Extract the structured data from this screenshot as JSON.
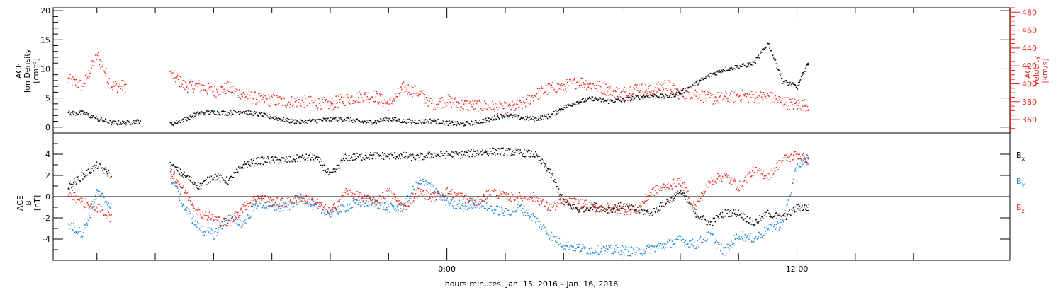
{
  "chart_data": [
    {
      "type": "scatter",
      "panel": "top",
      "left_ylabel_lines": [
        "ACE",
        "Ion Density",
        "[cm⁻³]"
      ],
      "right_ylabel_lines": [
        "ACE",
        "Velocity",
        "[km/s]"
      ],
      "ylim": [
        -1,
        20.5
      ],
      "y2lim": [
        345,
        485
      ],
      "y_ticks": [
        "0",
        "5",
        "10",
        "15",
        "20"
      ],
      "y2_ticks": [
        "360",
        "380",
        "400",
        "420",
        "440",
        "460",
        "480"
      ],
      "y_tick_values": [
        0,
        5,
        10,
        15,
        20
      ],
      "y2_tick_values": [
        360,
        380,
        400,
        420,
        440,
        460,
        480
      ],
      "colors": {
        "density": "#000000",
        "velocity": "#e8281c"
      },
      "series": [
        {
          "name": "Ion Density",
          "axis": "left",
          "color": "#000000",
          "x": [
            -13.0,
            -12.5,
            -12.0,
            -11.5,
            -11.0,
            -10.5,
            -10.0,
            -9.5,
            -9.0,
            -8.5,
            -8.0,
            -7.5,
            -7.0,
            -6.5,
            -6.0,
            -5.5,
            -5.0,
            -4.5,
            -4.0,
            -3.5,
            -3.0,
            -2.5,
            -2.0,
            -1.5,
            -1.0,
            -0.5,
            0.0,
            0.5,
            1.0,
            1.5,
            2.0,
            2.5,
            3.0,
            3.5,
            4.0,
            4.5,
            5.0,
            5.5,
            6.0,
            6.5,
            7.0,
            7.5,
            8.0,
            8.5,
            9.0,
            9.5,
            10.0,
            10.5,
            11.0,
            11.5,
            12.0,
            12.4
          ],
          "y": [
            2.5,
            2.5,
            1.5,
            0.8,
            0.8,
            1.2,
            null,
            0.5,
            1.5,
            2.5,
            2.6,
            2.5,
            2.8,
            2.3,
            1.8,
            1.2,
            1.0,
            1.2,
            1.4,
            1.5,
            1.0,
            1.0,
            1.5,
            1.1,
            1.0,
            1.2,
            0.8,
            0.6,
            0.9,
            1.5,
            2.2,
            1.7,
            1.5,
            2.0,
            3.5,
            4.5,
            5.0,
            4.5,
            4.7,
            5.2,
            5.5,
            5.3,
            6.0,
            7.5,
            9.0,
            10.0,
            10.5,
            11.0,
            14.5,
            8.0,
            7.0,
            11.5
          ]
        },
        {
          "name": "Velocity",
          "axis": "right",
          "color": "#e8281c",
          "x": [
            -13.0,
            -12.5,
            -12.0,
            -11.5,
            -11.0,
            -10.5,
            -10.0,
            -9.5,
            -9.0,
            -8.5,
            -8.0,
            -7.5,
            -7.0,
            -6.5,
            -6.0,
            -5.5,
            -5.0,
            -4.5,
            -4.0,
            -3.5,
            -3.0,
            -2.5,
            -2.0,
            -1.5,
            -1.0,
            -0.5,
            0.0,
            0.5,
            1.0,
            1.5,
            2.0,
            2.5,
            3.0,
            3.5,
            4.0,
            4.5,
            5.0,
            5.5,
            6.0,
            6.5,
            7.0,
            7.5,
            8.0,
            8.5,
            9.0,
            9.5,
            10.0,
            10.5,
            11.0,
            11.5,
            12.0,
            12.4
          ],
          "y": [
            405,
            398,
            432,
            398,
            398,
            null,
            null,
            412,
            398,
            398,
            392,
            396,
            388,
            384,
            382,
            380,
            381,
            379,
            378,
            383,
            386,
            387,
            377,
            396,
            391,
            378,
            382,
            377,
            376,
            375,
            373,
            376,
            388,
            395,
            398,
            403,
            399,
            394,
            390,
            397,
            392,
            400,
            389,
            390,
            384,
            385,
            387,
            386,
            386,
            380,
            377,
            377
          ]
        }
      ]
    },
    {
      "type": "scatter",
      "panel": "bottom",
      "ylabel_lines": [
        "ACE",
        "B",
        "[nT]"
      ],
      "ylim": [
        -6,
        6
      ],
      "y_ticks": [
        "-4",
        "-2",
        "0",
        "2",
        "4"
      ],
      "y_tick_values": [
        -4,
        -2,
        0,
        2,
        4
      ],
      "xlabel": "hours:minutes, Jan. 15, 2016 – Jan. 16, 2016",
      "xlim": [
        -13.5,
        19.3
      ],
      "x_tick_labels": [
        {
          "x": 0,
          "label": "0:00"
        },
        {
          "x": 12,
          "label": "12:00"
        }
      ],
      "x_minor_ticks": [
        -12,
        -10,
        -8,
        -6,
        -4,
        -2,
        2,
        4,
        6,
        8,
        10,
        14,
        16,
        18
      ],
      "legend": [
        {
          "label": "B",
          "sub": "x",
          "color": "#000000"
        },
        {
          "label": "B",
          "sub": "y",
          "color": "#1a86d6"
        },
        {
          "label": "B",
          "sub": "z",
          "color": "#e8281c"
        }
      ],
      "series": [
        {
          "name": "Bx",
          "color": "#000000",
          "x": [
            -13.0,
            -12.5,
            -12.0,
            -11.5,
            -11.0,
            -10.5,
            -10.0,
            -9.5,
            -9.0,
            -8.5,
            -8.0,
            -7.5,
            -7.0,
            -6.5,
            -6.0,
            -5.5,
            -5.0,
            -4.5,
            -4.0,
            -3.5,
            -3.0,
            -2.5,
            -2.0,
            -1.5,
            -1.0,
            -0.5,
            0.0,
            0.5,
            1.0,
            1.5,
            2.0,
            2.5,
            3.0,
            3.5,
            4.0,
            4.5,
            5.0,
            5.5,
            6.0,
            6.5,
            7.0,
            7.5,
            8.0,
            8.5,
            9.0,
            9.5,
            10.0,
            10.5,
            11.0,
            11.5,
            12.0,
            12.4
          ],
          "y": [
            1.0,
            2.0,
            3.0,
            2.0,
            null,
            null,
            null,
            3.0,
            2.0,
            1.0,
            2.0,
            1.5,
            3.0,
            3.4,
            3.5,
            3.5,
            3.7,
            3.7,
            2.0,
            3.7,
            3.8,
            3.9,
            3.9,
            3.9,
            3.7,
            4.0,
            4.0,
            4.0,
            4.2,
            4.3,
            4.3,
            4.2,
            4.0,
            2.5,
            -0.5,
            -1.2,
            -0.8,
            -1.2,
            -0.8,
            -1.2,
            -1.5,
            -0.5,
            0.5,
            -1.5,
            -2.5,
            -1.5,
            -1.5,
            -2.5,
            -1.5,
            -2.0,
            -1.0,
            -1.0
          ]
        },
        {
          "name": "By",
          "color": "#1a86d6",
          "x": [
            -13.0,
            -12.5,
            -12.0,
            -11.5,
            -11.0,
            -10.5,
            -10.0,
            -9.5,
            -9.0,
            -8.5,
            -8.0,
            -7.5,
            -7.0,
            -6.5,
            -6.0,
            -5.5,
            -5.0,
            -4.5,
            -4.0,
            -3.5,
            -3.0,
            -2.5,
            -2.0,
            -1.5,
            -1.0,
            -0.5,
            0.0,
            0.5,
            1.0,
            1.5,
            2.0,
            2.5,
            3.0,
            3.5,
            4.0,
            4.5,
            5.0,
            5.5,
            6.0,
            6.5,
            7.0,
            7.5,
            8.0,
            8.5,
            9.0,
            9.5,
            10.0,
            10.5,
            11.0,
            11.5,
            12.0,
            12.4
          ],
          "y": [
            -2.5,
            -3.5,
            0.5,
            -1.0,
            null,
            null,
            null,
            2.0,
            -1.0,
            -3.0,
            -3.5,
            -2.0,
            -2.5,
            -0.5,
            -1.0,
            -1.0,
            0.0,
            -1.0,
            -1.5,
            -1.0,
            -0.5,
            -0.5,
            -1.0,
            -1.0,
            1.5,
            1.0,
            -0.5,
            -1.0,
            -0.5,
            -1.0,
            -1.5,
            -1.0,
            -2.0,
            -3.5,
            -4.5,
            -4.8,
            -5.0,
            -5.0,
            -5.0,
            -5.2,
            -4.8,
            -4.5,
            -4.0,
            -4.5,
            -3.5,
            -5.2,
            -3.5,
            -4.0,
            -3.0,
            -2.5,
            3.0,
            3.5
          ]
        },
        {
          "name": "Bz",
          "color": "#e8281c",
          "x": [
            -13.0,
            -12.5,
            -12.0,
            -11.5,
            -11.0,
            -10.5,
            -10.0,
            -9.5,
            -9.0,
            -8.5,
            -8.0,
            -7.5,
            -7.0,
            -6.5,
            -6.0,
            -5.5,
            -5.0,
            -4.5,
            -4.0,
            -3.5,
            -3.0,
            -2.5,
            -2.0,
            -1.5,
            -1.0,
            -0.5,
            0.0,
            0.5,
            1.0,
            1.5,
            2.0,
            2.5,
            3.0,
            3.5,
            4.0,
            4.5,
            5.0,
            5.5,
            6.0,
            6.5,
            7.0,
            7.5,
            8.0,
            8.5,
            9.0,
            9.5,
            10.0,
            10.5,
            11.0,
            11.5,
            12.0,
            12.4
          ],
          "y": [
            0.5,
            -0.5,
            -1.0,
            -2.0,
            null,
            null,
            null,
            2.5,
            0.5,
            -1.5,
            -2.0,
            -2.5,
            -1.0,
            0.0,
            -0.5,
            -0.5,
            0.0,
            -0.5,
            -1.5,
            0.5,
            0.0,
            -0.5,
            0.5,
            -1.0,
            0.5,
            0.0,
            0.5,
            0.0,
            -0.5,
            0.5,
            0.0,
            0.0,
            0.0,
            -1.0,
            -0.5,
            -0.5,
            -1.0,
            -1.0,
            -1.2,
            -1.2,
            0.5,
            1.0,
            1.5,
            -1.0,
            1.5,
            2.0,
            1.0,
            2.5,
            2.0,
            3.5,
            4.0,
            3.5
          ]
        }
      ]
    }
  ]
}
